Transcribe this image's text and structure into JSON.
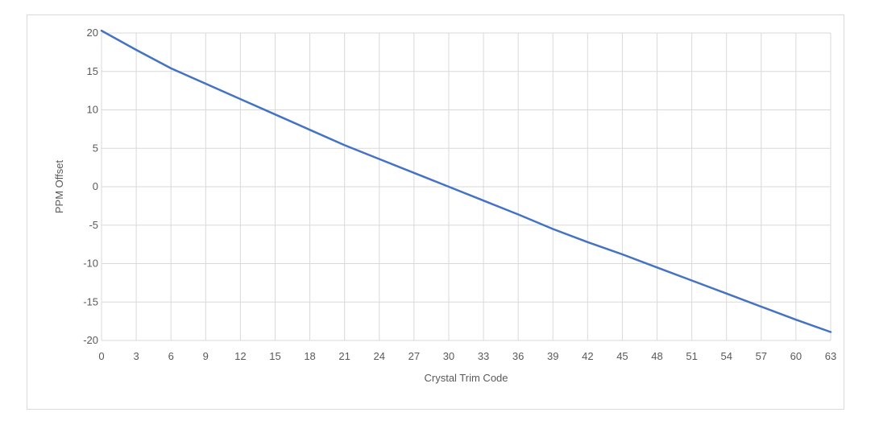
{
  "chart_data": {
    "type": "line",
    "title": "",
    "xlabel": "Crystal Trim Code",
    "ylabel": "PPM Offset",
    "xlim": [
      0,
      63
    ],
    "ylim": [
      -20,
      20
    ],
    "x_ticks": [
      0,
      3,
      6,
      9,
      12,
      15,
      18,
      21,
      24,
      27,
      30,
      33,
      36,
      39,
      42,
      45,
      48,
      51,
      54,
      57,
      60,
      63
    ],
    "y_ticks": [
      20,
      15,
      10,
      5,
      0,
      -5,
      -10,
      -15,
      -20
    ],
    "grid": true,
    "legend": "none",
    "series": [
      {
        "color": "#4472c4",
        "points": [
          [
            0,
            20.3
          ],
          [
            3,
            17.8
          ],
          [
            6,
            15.4
          ],
          [
            9,
            13.4
          ],
          [
            12,
            11.4
          ],
          [
            15,
            9.4
          ],
          [
            18,
            7.4
          ],
          [
            21,
            5.4
          ],
          [
            24,
            3.6
          ],
          [
            27,
            1.8
          ],
          [
            30,
            0.0
          ],
          [
            33,
            -1.8
          ],
          [
            36,
            -3.6
          ],
          [
            39,
            -5.5
          ],
          [
            42,
            -7.2
          ],
          [
            45,
            -8.8
          ],
          [
            48,
            -10.5
          ],
          [
            51,
            -12.2
          ],
          [
            54,
            -13.9
          ],
          [
            57,
            -15.6
          ],
          [
            60,
            -17.3
          ],
          [
            63,
            -18.9
          ]
        ]
      }
    ]
  },
  "colors": {
    "gridline": "#d9d9d9",
    "line": "#4472c4",
    "text": "#595959"
  }
}
